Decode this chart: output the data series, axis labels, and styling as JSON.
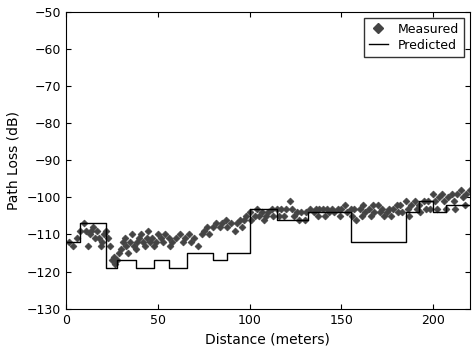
{
  "xlabel": "Distance (meters)",
  "ylabel": "Path Loss (dB)",
  "xlim": [
    0,
    220
  ],
  "ylim": [
    -130,
    -50
  ],
  "yticks": [
    -130,
    -120,
    -110,
    -100,
    -90,
    -80,
    -70,
    -60,
    -50
  ],
  "xticks": [
    0,
    50,
    100,
    150,
    200
  ],
  "measured_x": [
    2,
    4,
    6,
    8,
    10,
    11,
    12,
    13,
    14,
    15,
    16,
    17,
    18,
    19,
    20,
    21,
    22,
    23,
    24,
    25,
    26,
    27,
    28,
    29,
    30,
    31,
    32,
    33,
    34,
    35,
    36,
    37,
    38,
    39,
    40,
    41,
    42,
    43,
    44,
    45,
    46,
    47,
    48,
    49,
    50,
    52,
    53,
    54,
    56,
    57,
    58,
    60,
    62,
    64,
    65,
    67,
    68,
    70,
    72,
    74,
    75,
    77,
    78,
    80,
    82,
    84,
    85,
    87,
    88,
    90,
    92,
    93,
    95,
    96,
    97,
    98,
    100,
    101,
    103,
    104,
    105,
    107,
    108,
    109,
    110,
    112,
    113,
    115,
    116,
    117,
    119,
    120,
    122,
    123,
    124,
    126,
    127,
    128,
    130,
    131,
    133,
    135,
    136,
    137,
    138,
    140,
    141,
    142,
    143,
    145,
    146,
    148,
    149,
    150,
    152,
    153,
    155,
    156,
    157,
    158,
    160,
    161,
    162,
    163,
    165,
    166,
    167,
    168,
    170,
    171,
    172,
    173,
    175,
    176,
    177,
    178,
    180,
    181,
    182,
    183,
    185,
    186,
    187,
    188,
    190,
    191,
    192,
    193,
    195,
    196,
    197,
    198,
    200,
    201,
    202,
    203,
    205,
    206,
    207,
    208,
    210,
    211,
    212,
    213,
    215,
    216,
    217,
    218,
    220
  ],
  "measured_y": [
    -112,
    -113,
    -111,
    -109,
    -107,
    -109,
    -113,
    -110,
    -109,
    -108,
    -111,
    -109,
    -111,
    -113,
    -112,
    -110,
    -109,
    -111,
    -113,
    -117,
    -116,
    -118,
    -117,
    -115,
    -114,
    -112,
    -111,
    -113,
    -115,
    -112,
    -110,
    -113,
    -114,
    -112,
    -111,
    -110,
    -112,
    -113,
    -111,
    -109,
    -112,
    -111,
    -113,
    -112,
    -110,
    -111,
    -112,
    -110,
    -111,
    -113,
    -112,
    -111,
    -110,
    -112,
    -111,
    -110,
    -112,
    -111,
    -113,
    -110,
    -109,
    -108,
    -110,
    -108,
    -107,
    -108,
    -107,
    -106,
    -108,
    -107,
    -109,
    -107,
    -106,
    -108,
    -106,
    -105,
    -104,
    -106,
    -105,
    -103,
    -105,
    -104,
    -106,
    -105,
    -104,
    -103,
    -105,
    -103,
    -105,
    -103,
    -105,
    -103,
    -101,
    -103,
    -105,
    -104,
    -106,
    -104,
    -106,
    -104,
    -103,
    -104,
    -103,
    -105,
    -103,
    -103,
    -105,
    -103,
    -104,
    -103,
    -104,
    -103,
    -105,
    -103,
    -102,
    -104,
    -103,
    -105,
    -103,
    -106,
    -103,
    -105,
    -102,
    -104,
    -103,
    -105,
    -102,
    -104,
    -102,
    -104,
    -103,
    -105,
    -104,
    -103,
    -105,
    -103,
    -102,
    -104,
    -102,
    -104,
    -101,
    -103,
    -105,
    -102,
    -101,
    -103,
    -102,
    -104,
    -101,
    -103,
    -101,
    -103,
    -99,
    -101,
    -103,
    -100,
    -99,
    -101,
    -103,
    -100,
    -99,
    -101,
    -103,
    -99,
    -98,
    -100,
    -102,
    -99,
    -98
  ],
  "predicted_x": [
    0,
    8,
    8,
    22,
    22,
    28,
    28,
    38,
    38,
    48,
    48,
    56,
    56,
    66,
    66,
    80,
    80,
    88,
    88,
    100,
    100,
    115,
    115,
    132,
    132,
    155,
    155,
    185,
    185,
    192,
    192,
    200,
    200,
    207,
    207,
    220
  ],
  "predicted_y": [
    -112,
    -112,
    -107,
    -107,
    -119,
    -119,
    -117,
    -117,
    -119,
    -119,
    -117,
    -117,
    -119,
    -119,
    -115,
    -115,
    -117,
    -117,
    -115,
    -115,
    -103,
    -103,
    -106,
    -106,
    -104,
    -104,
    -112,
    -112,
    -104,
    -104,
    -101,
    -101,
    -104,
    -104,
    -102,
    -102
  ],
  "legend_labels": [
    "Measured",
    "Predicted"
  ],
  "marker": "D",
  "marker_size": 3.5,
  "marker_color": "#444444",
  "line_color": "#000000",
  "background_color": "#ffffff",
  "figure_width": 4.77,
  "figure_height": 3.53,
  "dpi": 100
}
